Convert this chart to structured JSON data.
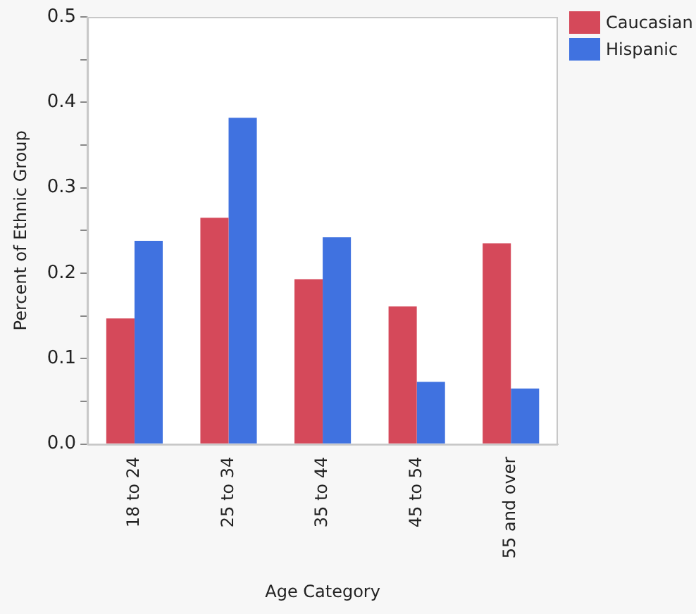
{
  "chart_data": {
    "type": "bar",
    "xlabel": "Age Category",
    "ylabel": "Percent of Ethnic Group",
    "categories": [
      "18 to 24",
      "25 to 34",
      "35 to 44",
      "45 to 54",
      "55 and over"
    ],
    "series": [
      {
        "name": "Caucasian",
        "color": "#d5495a",
        "values": [
          0.147,
          0.265,
          0.193,
          0.161,
          0.235
        ]
      },
      {
        "name": "Hispanic",
        "color": "#4072e0",
        "values": [
          0.238,
          0.382,
          0.242,
          0.073,
          0.065
        ]
      }
    ],
    "ylim": [
      0,
      0.5
    ],
    "yticks": [
      {
        "value": 0,
        "label": "0.0"
      },
      {
        "value": 0.05,
        "label": null
      },
      {
        "value": 0.1,
        "label": "0.1"
      },
      {
        "value": 0.15,
        "label": null
      },
      {
        "value": 0.2,
        "label": "0.2"
      },
      {
        "value": 0.25,
        "label": null
      },
      {
        "value": 0.3,
        "label": "0.3"
      },
      {
        "value": 0.35,
        "label": null
      },
      {
        "value": 0.4,
        "label": "0.4"
      },
      {
        "value": 0.45,
        "label": null
      },
      {
        "value": 0.5,
        "label": "0.5"
      }
    ],
    "grid": false,
    "legend": "top right"
  }
}
